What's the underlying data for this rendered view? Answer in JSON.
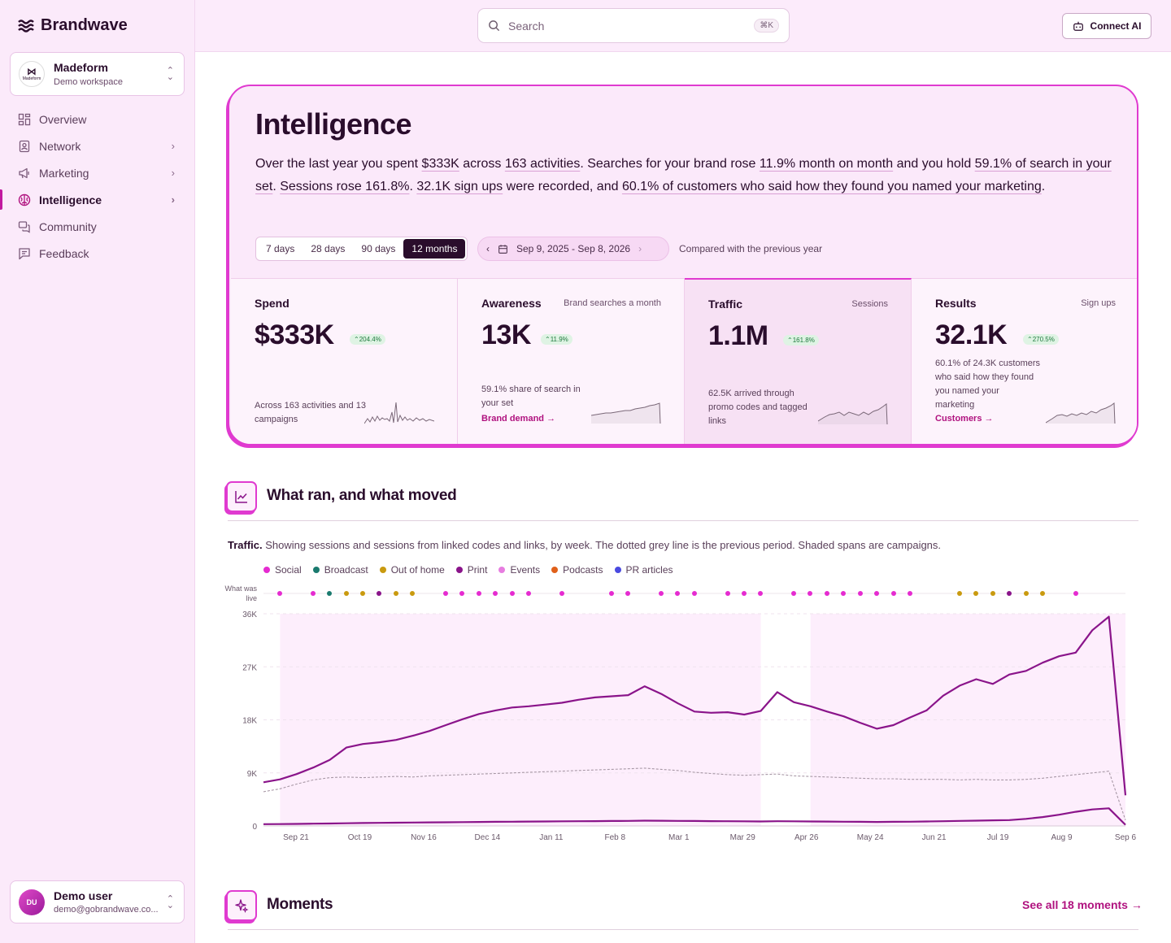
{
  "brand": {
    "name": "Brandwave"
  },
  "workspace": {
    "name": "Madeform",
    "subtitle": "Demo workspace",
    "logo_text": "Madeform"
  },
  "nav": {
    "items": [
      {
        "label": "Overview",
        "icon": "grid-icon"
      },
      {
        "label": "Network",
        "icon": "contact-icon"
      },
      {
        "label": "Marketing",
        "icon": "megaphone-icon"
      },
      {
        "label": "Intelligence",
        "icon": "brain-icon"
      },
      {
        "label": "Community",
        "icon": "chat-icon"
      },
      {
        "label": "Feedback",
        "icon": "feedback-icon"
      }
    ]
  },
  "user": {
    "initials": "DU",
    "name": "Demo user",
    "email": "demo@gobrandwave.co..."
  },
  "search": {
    "placeholder": "Search",
    "shortcut": "⌘K"
  },
  "connect": {
    "label": "Connect AI"
  },
  "intelligence": {
    "title": "Intelligence",
    "summary": {
      "p1": "Over the last year you spent ",
      "spend": "$333K",
      "p2": " across ",
      "activities": "163 activities",
      "p3": ". Searches for your brand rose ",
      "searches": "11.9% month on month",
      "p4": " and you hold ",
      "share": "59.1% of search in your set",
      "p5": ". ",
      "sessions": "Sessions rose 161.8%",
      "p6": ". ",
      "signups": "32.1K sign ups",
      "p7": " were recorded, and ",
      "customers": "60.1% of customers who said how they found you named your marketing",
      "p8": "."
    },
    "ranges": [
      "7 days",
      "28 days",
      "90 days",
      "12 months"
    ],
    "selected_range": "12 months",
    "date_range": "Sep 9, 2025 - Sep 8, 2026",
    "compared": "Compared with the previous year",
    "kpis": [
      {
        "title": "Spend",
        "subtitle": "",
        "value": "$333K",
        "change": "204.4%",
        "desc": "Across 163 activities and 13 campaigns",
        "link": ""
      },
      {
        "title": "Awareness",
        "subtitle": "Brand searches a month",
        "value": "13K",
        "change": "11.9%",
        "desc": "59.1% share of search in your set",
        "link": "Brand demand"
      },
      {
        "title": "Traffic",
        "subtitle": "Sessions",
        "value": "1.1M",
        "change": "161.8%",
        "desc": "62.5K arrived through promo codes and tagged links",
        "link": ""
      },
      {
        "title": "Results",
        "subtitle": "Sign ups",
        "value": "32.1K",
        "change": "270.5%",
        "desc": "60.1% of 24.3K customers who said how they found you named your marketing",
        "link": "Customers"
      }
    ]
  },
  "what_ran": {
    "title": "What ran, and what moved",
    "caption_bold": "Traffic.",
    "caption": " Showing sessions and sessions from linked codes and links, by week. The dotted grey line is the previous period. Shaded spans are campaigns."
  },
  "chart_data": {
    "type": "line",
    "legend": [
      {
        "name": "Social",
        "color": "#e52bd0"
      },
      {
        "name": "Broadcast",
        "color": "#1a7a6e"
      },
      {
        "name": "Out of home",
        "color": "#c99a0f"
      },
      {
        "name": "Print",
        "color": "#8a148a"
      },
      {
        "name": "Events",
        "color": "#e77de0"
      },
      {
        "name": "Podcasts",
        "color": "#e0601a"
      },
      {
        "name": "PR articles",
        "color": "#4a4ae0"
      }
    ],
    "live_label": "What was live",
    "live_row": [
      "Social",
      "Social",
      "Broadcast",
      "Out of home",
      "Out of home",
      "Print",
      "Out of home",
      "Out of home",
      "Social",
      "Social",
      "Social",
      "Social",
      "Social",
      "Social",
      "Social",
      "Social",
      "Social",
      "Social",
      "Social",
      "Social",
      "Social",
      "Social",
      "Social",
      "Social",
      "Social",
      "Social",
      "Social",
      "Social",
      "Social",
      "Social",
      "Social",
      "Out of home",
      "Out of home",
      "Out of home",
      "Print",
      "Out of home",
      "Out of home",
      "Social"
    ],
    "x_ticks": [
      "Sep 21",
      "Oct 19",
      "Nov 16",
      "Dec 14",
      "Jan 11",
      "Feb 8",
      "Mar 1",
      "Mar 29",
      "Apr 26",
      "May 24",
      "Jun 21",
      "Jul 19",
      "Aug 9",
      "Sep 6"
    ],
    "y_ticks": [
      "0",
      "9K",
      "18K",
      "27K",
      "36K"
    ],
    "ylim": [
      0,
      36000
    ],
    "weeks": 52,
    "sessions": [
      7400,
      7900,
      8800,
      9900,
      11200,
      13300,
      13900,
      14200,
      14600,
      15300,
      16100,
      17100,
      18100,
      19000,
      19600,
      20100,
      20300,
      20600,
      20900,
      21400,
      21800,
      22000,
      22200,
      23700,
      22400,
      20800,
      19400,
      19200,
      19300,
      18900,
      19500,
      22700,
      21000,
      20300,
      19400,
      18600,
      17500,
      16500,
      17100,
      18400,
      19600,
      22100,
      23800,
      24900,
      24100,
      25700,
      26300,
      27700,
      28800,
      29400,
      33200,
      35500,
      5200
    ],
    "linked": [
      300,
      320,
      350,
      380,
      420,
      450,
      500,
      520,
      550,
      580,
      600,
      620,
      650,
      680,
      700,
      720,
      740,
      760,
      780,
      800,
      820,
      840,
      860,
      900,
      880,
      860,
      840,
      820,
      800,
      780,
      760,
      800,
      780,
      760,
      740,
      720,
      700,
      680,
      700,
      720,
      760,
      800,
      860,
      900,
      950,
      1000,
      1200,
      1500,
      1900,
      2400,
      2800,
      3000,
      200
    ],
    "previous": [
      5800,
      6300,
      7100,
      7800,
      8200,
      8300,
      8200,
      8300,
      8400,
      8300,
      8500,
      8600,
      8700,
      8800,
      8900,
      9000,
      9100,
      9200,
      9300,
      9400,
      9500,
      9600,
      9700,
      9800,
      9600,
      9400,
      9100,
      8900,
      8700,
      8600,
      8700,
      8800,
      8500,
      8400,
      8300,
      8200,
      8100,
      8000,
      8000,
      7900,
      7900,
      7900,
      7800,
      7900,
      7800,
      7800,
      7900,
      8100,
      8400,
      8700,
      9000,
      9300,
      1000
    ],
    "campaign_spans": [
      [
        1,
        30
      ],
      [
        33,
        52
      ]
    ]
  },
  "moments": {
    "title": "Moments",
    "see_all": "See all 18 moments"
  }
}
